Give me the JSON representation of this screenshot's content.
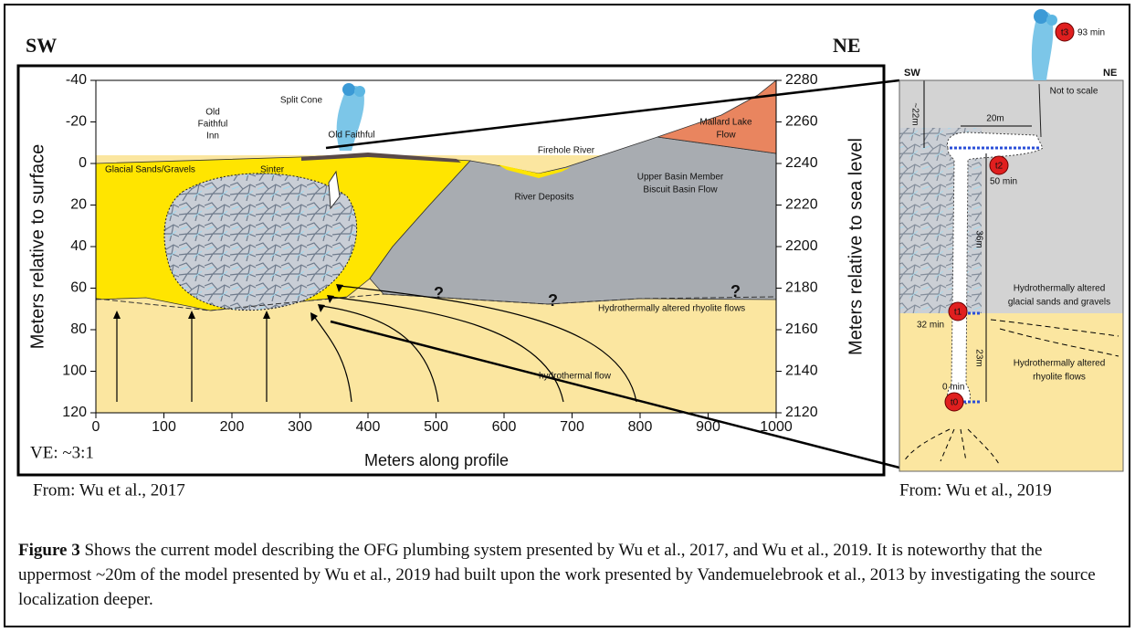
{
  "header": {
    "left": "SW",
    "right": "NE"
  },
  "left_panel": {
    "y_label": "Meters relative to surface",
    "y2_label": "Meters relative to sea level",
    "x_label": "Meters along profile",
    "ve": "VE: ~3:1",
    "yticks": [
      -40,
      -20,
      0,
      20,
      40,
      60,
      80,
      100,
      120
    ],
    "y2ticks": [
      2280,
      2260,
      2240,
      2220,
      2200,
      2180,
      2160,
      2140,
      2120
    ],
    "xticks": [
      0,
      100,
      200,
      300,
      400,
      500,
      600,
      700,
      800,
      900,
      1000
    ],
    "labels": {
      "old_faithful_inn": [
        "Old",
        "Faithful",
        "Inn"
      ],
      "split_cone": "Split Cone",
      "old_faithful": "Old Faithful",
      "glacial": "Glacial Sands/Gravels",
      "sinter": "Sinter",
      "firehole": "Firehole River",
      "river_deposits": "River Deposits",
      "upper_basin": [
        "Upper Basin Member",
        "Biscuit Basin Flow"
      ],
      "mallard": [
        "Mallard Lake",
        "Flow"
      ],
      "rhyolite": "Hydrothermally altered rhyolite flows",
      "flow": "hydrothermal flow",
      "questions": [
        "?",
        "?",
        "?"
      ]
    },
    "source": "From: Wu et al., 2017"
  },
  "right_panel": {
    "sw": "SW",
    "ne": "NE",
    "scale": "Not to scale",
    "d22": "~22m",
    "d20": "20m",
    "d36": "36m",
    "d23": "23m",
    "t3": "t3",
    "t3_time": "93 min",
    "t2": "t2",
    "t2_time": "50 min",
    "t1": "t1",
    "t1_time": "32 min",
    "t0": "t0",
    "t0_time": "0 min",
    "glacial": [
      "Hydrothermally altered",
      "glacial sands and gravels"
    ],
    "rhyolite": [
      "Hydrothermally altered",
      "rhyolite flows"
    ],
    "source": "From: Wu et al., 2019"
  },
  "caption": {
    "label": "Figure 3",
    "text": " Shows the current model describing the OFG plumbing system presented by Wu et al., 2017, and Wu et al., 2019. It is noteworthy that the uppermost ~20m of the model presented by Wu et al., 2019 had built upon the work presented by Vandemuelebrook et al., 2013 by investigating the source localization deeper."
  }
}
